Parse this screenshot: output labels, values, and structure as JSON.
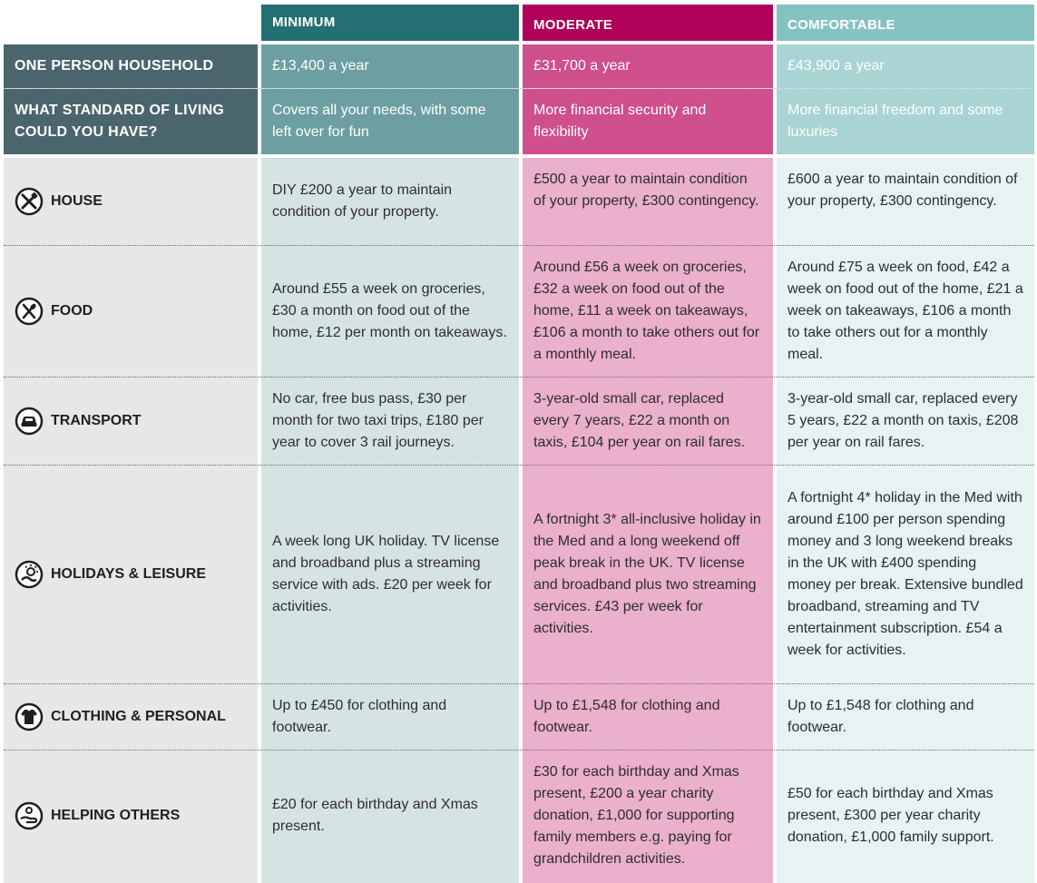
{
  "columns": {
    "minimum": "MINIMUM",
    "moderate": "MODERATE",
    "comfortable": "COMFORTABLE"
  },
  "household": {
    "label": "ONE PERSON HOUSEHOLD",
    "minimum": "£13,400 a year",
    "moderate": "£31,700 a year",
    "comfortable": "£43,900 a year"
  },
  "standard": {
    "label_line1": "WHAT STANDARD OF LIVING",
    "label_line2": "COULD YOU HAVE?",
    "minimum": "Covers all your needs, with some left over for fun",
    "moderate": "More financial security and flexibility",
    "comfortable": "More financial freedom and some luxuries"
  },
  "rows": [
    {
      "icon": "tools-icon",
      "label": "HOUSE",
      "minimum": "DIY £200 a year to maintain condition of your property.",
      "moderate": "£500 a year to maintain condition of your property, £300 contingency.",
      "comfortable": "£600 a year to maintain condition of your property, £300 contingency."
    },
    {
      "icon": "cutlery-icon",
      "label": "FOOD",
      "minimum": "Around £55 a week on groceries, £30 a month on food out of the home, £12 per month on takeaways.",
      "moderate": "Around £56 a week on groceries, £32 a week on food out of the home, £11 a week on takeaways, £106 a month to take others out for a monthly meal.",
      "comfortable": "Around £75 a week on food, £42 a week on food out of the home, £21 a week on takeaways, £106 a month to take others out for a monthly meal."
    },
    {
      "icon": "car-icon",
      "label": "TRANSPORT",
      "minimum": "No car, free bus pass, £30 per month for two taxi trips, £180 per year to cover 3 rail journeys.",
      "moderate": "3-year-old small car, replaced every 7 years, £22 a month on taxis, £104 per year on rail fares.",
      "comfortable": "3-year-old small car, replaced every 5 years, £22 a month on taxis, £208 per year on rail fares."
    },
    {
      "icon": "holiday-icon",
      "label": "HOLIDAYS & LEISURE",
      "minimum": "A week long UK holiday. TV license and broadband plus a streaming service with ads. £20 per week for activities.",
      "moderate": "A fortnight 3* all-inclusive holiday in the Med and a long weekend off peak break in the UK. TV license and broadband plus two streaming services. £43 per week for activities.",
      "comfortable": "A fortnight 4* holiday in the Med with around £100 per person spending money and 3 long weekend breaks in the UK with £400 spending money per break. Extensive bundled broadband, streaming and TV entertainment subscription. £54 a week for activities."
    },
    {
      "icon": "shirt-icon",
      "label": "CLOTHING & PERSONAL",
      "minimum": "Up to £450 for clothing and footwear.",
      "moderate": "Up to £1,548 for clothing and footwear.",
      "comfortable": "Up to £1,548 for clothing and footwear."
    },
    {
      "icon": "helping-hand-icon",
      "label": "HELPING OTHERS",
      "minimum": "£20 for each birthday and Xmas present.",
      "moderate": "£30 for each birthday and Xmas present, £200 a year charity donation, £1,000 for supporting family members e.g. paying for grandchildren activities.",
      "comfortable": "£50 for each birthday and Xmas present, £300 per year charity donation, £1,000 family support."
    }
  ],
  "colors": {
    "min_header": "#236f73",
    "mod_header": "#b0005a",
    "com_header": "#86c2c1",
    "label_dark": "#4b656c",
    "min_top": "#6d9fa2",
    "mod_top": "#ce4f8c",
    "com_top": "#a9d4d3",
    "min_body": "#d6e3e3",
    "mod_body": "#ebb0cb",
    "com_body": "#e7f2f2",
    "label_body": "#e6e8e8"
  }
}
